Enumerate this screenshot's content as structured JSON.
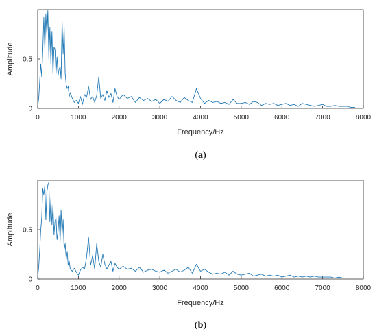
{
  "colors": {
    "series": "#1f77b4",
    "axis": "#262626"
  },
  "chart_data": [
    {
      "type": "line",
      "panel_label": "a",
      "xlabel": "Frequency/Hz",
      "ylabel": "Amplitude",
      "xlim": [
        0,
        8000
      ],
      "ylim": [
        0,
        1
      ],
      "xticks": [
        0,
        1000,
        2000,
        3000,
        4000,
        5000,
        6000,
        7000,
        8000
      ],
      "xtick_labels": [
        "0",
        "1000",
        "2000",
        "3000",
        "4000",
        "5000",
        "6000",
        "7000",
        "8000"
      ],
      "yticks": [
        0,
        0.5
      ],
      "ytick_labels": [
        "0",
        "0.5"
      ],
      "grid": false,
      "series": [
        {
          "x": [
            0,
            25,
            50,
            75,
            100,
            125,
            150,
            175,
            200,
            225,
            250,
            275,
            300,
            325,
            350,
            375,
            400,
            425,
            450,
            475,
            500,
            525,
            550,
            575,
            600,
            625,
            650,
            675,
            700,
            725,
            750,
            775,
            800,
            850,
            900,
            950,
            1000,
            1050,
            1100,
            1150,
            1200,
            1250,
            1300,
            1350,
            1400,
            1450,
            1500,
            1550,
            1600,
            1650,
            1700,
            1750,
            1800,
            1850,
            1900,
            1950,
            2000,
            2100,
            2200,
            2300,
            2400,
            2500,
            2600,
            2700,
            2800,
            2900,
            3000,
            3100,
            3200,
            3300,
            3400,
            3500,
            3600,
            3700,
            3800,
            3900,
            4000,
            4100,
            4200,
            4300,
            4400,
            4500,
            4600,
            4700,
            4800,
            4900,
            5000,
            5100,
            5200,
            5300,
            5400,
            5500,
            5600,
            5700,
            5800,
            5900,
            6000,
            6100,
            6200,
            6300,
            6400,
            6500,
            6600,
            6700,
            6800,
            6900,
            7000,
            7100,
            7200,
            7300,
            7400,
            7500,
            7600,
            7700,
            7800
          ],
          "values": [
            0.02,
            0.1,
            0.28,
            0.45,
            0.32,
            0.58,
            0.92,
            0.6,
            0.95,
            0.74,
            0.99,
            0.5,
            0.82,
            0.45,
            0.78,
            0.35,
            0.62,
            0.6,
            0.35,
            0.52,
            0.33,
            0.4,
            0.42,
            0.3,
            0.88,
            0.55,
            0.82,
            0.35,
            0.24,
            0.2,
            0.22,
            0.12,
            0.16,
            0.1,
            0.06,
            0.08,
            0.05,
            0.12,
            0.04,
            0.14,
            0.11,
            0.22,
            0.09,
            0.12,
            0.06,
            0.13,
            0.32,
            0.1,
            0.14,
            0.08,
            0.18,
            0.11,
            0.15,
            0.06,
            0.2,
            0.12,
            0.09,
            0.14,
            0.1,
            0.12,
            0.06,
            0.11,
            0.08,
            0.1,
            0.07,
            0.09,
            0.05,
            0.09,
            0.07,
            0.12,
            0.08,
            0.06,
            0.11,
            0.08,
            0.06,
            0.2,
            0.1,
            0.05,
            0.08,
            0.06,
            0.07,
            0.05,
            0.06,
            0.04,
            0.09,
            0.05,
            0.05,
            0.06,
            0.04,
            0.07,
            0.06,
            0.03,
            0.05,
            0.04,
            0.05,
            0.03,
            0.04,
            0.05,
            0.03,
            0.04,
            0.02,
            0.05,
            0.04,
            0.03,
            0.02,
            0.03,
            0.04,
            0.02,
            0.02,
            0.03,
            0.02,
            0.02,
            0.02,
            0.01,
            0.01
          ]
        }
      ]
    },
    {
      "type": "line",
      "panel_label": "b",
      "xlabel": "Frequency/Hz",
      "ylabel": "Amplitude",
      "xlim": [
        0,
        8000
      ],
      "ylim": [
        0,
        1
      ],
      "xticks": [
        0,
        1000,
        2000,
        3000,
        4000,
        5000,
        6000,
        7000,
        8000
      ],
      "xtick_labels": [
        "0",
        "1000",
        "2000",
        "3000",
        "4000",
        "5000",
        "6000",
        "7000",
        "8000"
      ],
      "yticks": [
        0,
        0.5
      ],
      "ytick_labels": [
        "0",
        "0.5"
      ],
      "grid": false,
      "series": [
        {
          "x": [
            0,
            25,
            50,
            75,
            100,
            125,
            150,
            175,
            200,
            225,
            250,
            275,
            300,
            325,
            350,
            375,
            400,
            425,
            450,
            475,
            500,
            525,
            550,
            575,
            600,
            625,
            650,
            675,
            700,
            725,
            750,
            775,
            800,
            850,
            900,
            950,
            1000,
            1050,
            1100,
            1150,
            1200,
            1250,
            1300,
            1350,
            1400,
            1450,
            1500,
            1550,
            1600,
            1650,
            1700,
            1750,
            1800,
            1850,
            1900,
            1950,
            2000,
            2100,
            2200,
            2300,
            2400,
            2500,
            2600,
            2700,
            2800,
            2900,
            3000,
            3100,
            3200,
            3300,
            3400,
            3500,
            3600,
            3700,
            3800,
            3900,
            4000,
            4100,
            4200,
            4300,
            4400,
            4500,
            4600,
            4700,
            4800,
            4900,
            5000,
            5100,
            5200,
            5300,
            5400,
            5500,
            5600,
            5700,
            5800,
            5900,
            6000,
            6100,
            6200,
            6300,
            6400,
            6500,
            6600,
            6700,
            6800,
            6900,
            7000,
            7100,
            7200,
            7300,
            7400,
            7500,
            7600,
            7700,
            7800
          ],
          "values": [
            0.02,
            0.12,
            0.3,
            0.5,
            0.62,
            0.92,
            0.85,
            0.95,
            0.6,
            0.88,
            0.95,
            0.98,
            0.58,
            0.82,
            0.55,
            0.75,
            0.45,
            0.58,
            0.62,
            0.4,
            0.48,
            0.64,
            0.38,
            0.7,
            0.45,
            0.6,
            0.3,
            0.36,
            0.2,
            0.28,
            0.14,
            0.18,
            0.1,
            0.08,
            0.11,
            0.07,
            0.04,
            0.09,
            0.12,
            0.1,
            0.22,
            0.42,
            0.14,
            0.24,
            0.1,
            0.36,
            0.18,
            0.12,
            0.25,
            0.15,
            0.1,
            0.14,
            0.18,
            0.08,
            0.16,
            0.12,
            0.1,
            0.13,
            0.1,
            0.11,
            0.08,
            0.12,
            0.07,
            0.09,
            0.1,
            0.08,
            0.07,
            0.09,
            0.06,
            0.08,
            0.1,
            0.07,
            0.09,
            0.12,
            0.06,
            0.15,
            0.08,
            0.1,
            0.07,
            0.05,
            0.06,
            0.05,
            0.07,
            0.04,
            0.08,
            0.05,
            0.04,
            0.05,
            0.06,
            0.03,
            0.04,
            0.05,
            0.03,
            0.04,
            0.03,
            0.04,
            0.02,
            0.03,
            0.04,
            0.02,
            0.03,
            0.02,
            0.03,
            0.02,
            0.03,
            0.02,
            0.02,
            0.02,
            0.02,
            0.01,
            0.02,
            0.01,
            0.01,
            0.01,
            0.01
          ]
        }
      ]
    }
  ]
}
